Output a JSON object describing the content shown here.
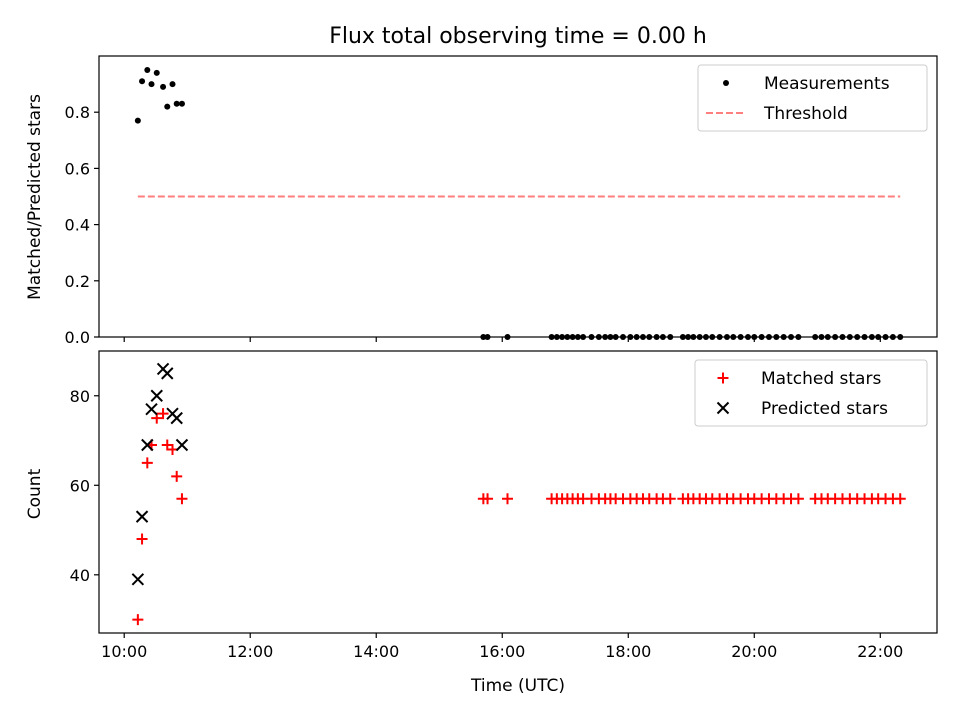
{
  "chart_data": [
    {
      "type": "scatter",
      "title": "Flux total observing time = 0.00 h",
      "ylabel": "Matched/Predicted stars",
      "xlabel": "",
      "xlim": [
        "09:36",
        "22:54"
      ],
      "ylim": [
        0,
        1.0
      ],
      "yticks": [
        "0.0",
        "0.2",
        "0.4",
        "0.6",
        "0.8"
      ],
      "ytick_values": [
        0,
        0.2,
        0.4,
        0.6,
        0.8
      ],
      "legend_position": "upper right",
      "series": [
        {
          "name": "Measurements",
          "marker": "dot",
          "color": "#000000",
          "points": [
            [
              "10:13",
              0.77
            ],
            [
              "10:17",
              0.91
            ],
            [
              "10:22",
              0.95
            ],
            [
              "10:26",
              0.9
            ],
            [
              "10:31",
              0.94
            ],
            [
              "10:37",
              0.89
            ],
            [
              "10:41",
              0.82
            ],
            [
              "10:46",
              0.9
            ],
            [
              "10:50",
              0.83
            ],
            [
              "10:55",
              0.83
            ],
            [
              "15:42",
              0
            ],
            [
              "15:46",
              0
            ],
            [
              "16:05",
              0
            ],
            [
              "16:47",
              0
            ],
            [
              "16:52",
              0
            ],
            [
              "16:57",
              0
            ],
            [
              "17:02",
              0
            ],
            [
              "17:07",
              0
            ],
            [
              "17:12",
              0
            ],
            [
              "17:17",
              0
            ],
            [
              "17:25",
              0
            ],
            [
              "17:32",
              0
            ],
            [
              "17:38",
              0
            ],
            [
              "17:43",
              0
            ],
            [
              "17:48",
              0
            ],
            [
              "17:55",
              0
            ],
            [
              "18:02",
              0
            ],
            [
              "18:08",
              0
            ],
            [
              "18:14",
              0
            ],
            [
              "18:20",
              0
            ],
            [
              "18:27",
              0
            ],
            [
              "18:33",
              0
            ],
            [
              "18:40",
              0
            ],
            [
              "18:52",
              0
            ],
            [
              "18:57",
              0
            ],
            [
              "19:02",
              0
            ],
            [
              "19:08",
              0
            ],
            [
              "19:14",
              0
            ],
            [
              "19:20",
              0
            ],
            [
              "19:27",
              0
            ],
            [
              "19:34",
              0
            ],
            [
              "19:40",
              0
            ],
            [
              "19:47",
              0
            ],
            [
              "19:54",
              0
            ],
            [
              "20:00",
              0
            ],
            [
              "20:07",
              0
            ],
            [
              "20:14",
              0
            ],
            [
              "20:21",
              0
            ],
            [
              "20:28",
              0
            ],
            [
              "20:35",
              0
            ],
            [
              "20:42",
              0
            ],
            [
              "20:58",
              0
            ],
            [
              "21:04",
              0
            ],
            [
              "21:10",
              0
            ],
            [
              "21:17",
              0
            ],
            [
              "21:24",
              0
            ],
            [
              "21:31",
              0
            ],
            [
              "21:38",
              0
            ],
            [
              "21:45",
              0
            ],
            [
              "21:52",
              0
            ],
            [
              "21:58",
              0
            ],
            [
              "22:05",
              0
            ],
            [
              "22:12",
              0
            ],
            [
              "22:19",
              0
            ]
          ]
        },
        {
          "name": "Threshold",
          "marker": "dashed-line",
          "color": "#ff7f7f",
          "points": [
            [
              "10:13",
              0.5
            ],
            [
              "22:19",
              0.5
            ]
          ]
        }
      ]
    },
    {
      "type": "scatter",
      "title": "",
      "ylabel": "Count",
      "xlabel": "Time (UTC)",
      "xlim": [
        "09:36",
        "22:54"
      ],
      "ylim": [
        27,
        90
      ],
      "xticks": [
        "10:00",
        "12:00",
        "14:00",
        "16:00",
        "18:00",
        "20:00",
        "22:00"
      ],
      "yticks": [
        "40",
        "60",
        "80"
      ],
      "ytick_values": [
        40,
        60,
        80
      ],
      "legend_position": "upper right",
      "series": [
        {
          "name": "Matched stars",
          "marker": "plus",
          "color": "#ff0000",
          "points": [
            [
              "10:13",
              30
            ],
            [
              "10:17",
              48
            ],
            [
              "10:22",
              65
            ],
            [
              "10:26",
              69
            ],
            [
              "10:31",
              75
            ],
            [
              "10:37",
              76
            ],
            [
              "10:41",
              69
            ],
            [
              "10:46",
              68
            ],
            [
              "10:50",
              62
            ],
            [
              "10:55",
              57
            ],
            [
              "15:42",
              57
            ],
            [
              "15:46",
              57
            ],
            [
              "16:05",
              57
            ],
            [
              "16:47",
              57
            ],
            [
              "16:52",
              57
            ],
            [
              "16:57",
              57
            ],
            [
              "17:02",
              57
            ],
            [
              "17:07",
              57
            ],
            [
              "17:12",
              57
            ],
            [
              "17:17",
              57
            ],
            [
              "17:25",
              57
            ],
            [
              "17:32",
              57
            ],
            [
              "17:38",
              57
            ],
            [
              "17:43",
              57
            ],
            [
              "17:48",
              57
            ],
            [
              "17:55",
              57
            ],
            [
              "18:02",
              57
            ],
            [
              "18:08",
              57
            ],
            [
              "18:14",
              57
            ],
            [
              "18:20",
              57
            ],
            [
              "18:27",
              57
            ],
            [
              "18:33",
              57
            ],
            [
              "18:40",
              57
            ],
            [
              "18:52",
              57
            ],
            [
              "18:57",
              57
            ],
            [
              "19:02",
              57
            ],
            [
              "19:08",
              57
            ],
            [
              "19:14",
              57
            ],
            [
              "19:20",
              57
            ],
            [
              "19:27",
              57
            ],
            [
              "19:34",
              57
            ],
            [
              "19:40",
              57
            ],
            [
              "19:47",
              57
            ],
            [
              "19:54",
              57
            ],
            [
              "20:00",
              57
            ],
            [
              "20:07",
              57
            ],
            [
              "20:14",
              57
            ],
            [
              "20:21",
              57
            ],
            [
              "20:28",
              57
            ],
            [
              "20:35",
              57
            ],
            [
              "20:42",
              57
            ],
            [
              "20:58",
              57
            ],
            [
              "21:04",
              57
            ],
            [
              "21:10",
              57
            ],
            [
              "21:17",
              57
            ],
            [
              "21:24",
              57
            ],
            [
              "21:31",
              57
            ],
            [
              "21:38",
              57
            ],
            [
              "21:45",
              57
            ],
            [
              "21:52",
              57
            ],
            [
              "21:58",
              57
            ],
            [
              "22:05",
              57
            ],
            [
              "22:12",
              57
            ],
            [
              "22:19",
              57
            ]
          ]
        },
        {
          "name": "Predicted stars",
          "marker": "x",
          "color": "#000000",
          "points": [
            [
              "10:13",
              39
            ],
            [
              "10:17",
              53
            ],
            [
              "10:22",
              69
            ],
            [
              "10:26",
              77
            ],
            [
              "10:31",
              80
            ],
            [
              "10:37",
              86
            ],
            [
              "10:41",
              85
            ],
            [
              "10:46",
              76
            ],
            [
              "10:50",
              75
            ],
            [
              "10:55",
              69
            ]
          ]
        }
      ]
    }
  ]
}
